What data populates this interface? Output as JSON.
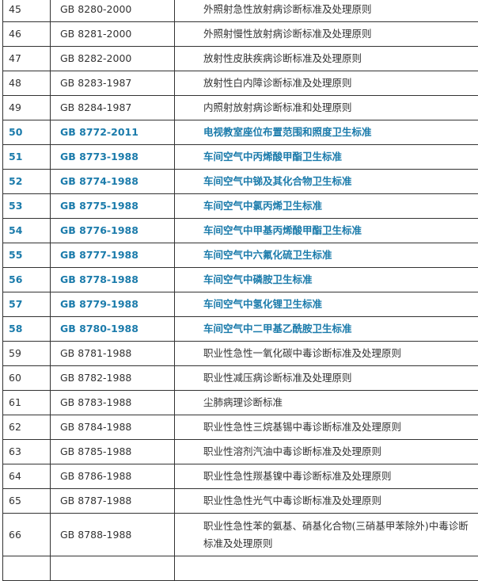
{
  "colors": {
    "highlight": "#1b7bab",
    "text": "#333333",
    "border": "#333333"
  },
  "rows": [
    {
      "no": "45",
      "code": "GB 8280-2000",
      "title": "外照射急性放射病诊断标准及处理原则",
      "highlight": false
    },
    {
      "no": "46",
      "code": "GB 8281-2000",
      "title": "外照射慢性放射病诊断标准及处理原则",
      "highlight": false
    },
    {
      "no": "47",
      "code": "GB 8282-2000",
      "title": "放射性皮肤疾病诊断标准及处理原则",
      "highlight": false
    },
    {
      "no": "48",
      "code": "GB 8283-1987",
      "title": "放射性白内障诊断标准及处理原则",
      "highlight": false
    },
    {
      "no": "49",
      "code": "GB 8284-1987",
      "title": "内照射放射病诊断标准和处理原则",
      "highlight": false
    },
    {
      "no": "50",
      "code": "GB 8772-2011",
      "title": "电视教室座位布置范围和照度卫生标准",
      "highlight": true
    },
    {
      "no": "51",
      "code": "GB 8773-1988",
      "title": "车间空气中丙烯酸甲酯卫生标准",
      "highlight": true
    },
    {
      "no": "52",
      "code": "GB 8774-1988",
      "title": "车间空气中锑及其化合物卫生标准",
      "highlight": true
    },
    {
      "no": "53",
      "code": "GB 8775-1988",
      "title": "车间空气中氯丙烯卫生标准",
      "highlight": true
    },
    {
      "no": "54",
      "code": "GB 8776-1988",
      "title": "车间空气中甲基丙烯酸甲酯卫生标准",
      "highlight": true
    },
    {
      "no": "55",
      "code": "GB 8777-1988",
      "title": "车间空气中六氟化硫卫生标准",
      "highlight": true
    },
    {
      "no": "56",
      "code": "GB 8778-1988",
      "title": "车间空气中磷胺卫生标准",
      "highlight": true
    },
    {
      "no": "57",
      "code": "GB 8779-1988",
      "title": "车间空气中氢化锂卫生标准",
      "highlight": true
    },
    {
      "no": "58",
      "code": "GB 8780-1988",
      "title": "车间空气中二甲基乙酰胺卫生标准",
      "highlight": true
    },
    {
      "no": "59",
      "code": "GB 8781-1988",
      "title": "职业性急性一氧化碳中毒诊断标准及处理原则",
      "highlight": false
    },
    {
      "no": "60",
      "code": "GB 8782-1988",
      "title": "职业性减压病诊断标准及处理原则",
      "highlight": false
    },
    {
      "no": "61",
      "code": "GB 8783-1988",
      "title": "尘肺病理诊断标准",
      "highlight": false
    },
    {
      "no": "62",
      "code": "GB 8784-1988",
      "title": "职业性急性三烷基锡中毒诊断标准及处理原则",
      "highlight": false
    },
    {
      "no": "63",
      "code": "GB 8785-1988",
      "title": "职业性溶剂汽油中毒诊断标准及处理原则",
      "highlight": false
    },
    {
      "no": "64",
      "code": "GB 8786-1988",
      "title": "职业性急性羰基镍中毒诊断标准及处理原则",
      "highlight": false
    },
    {
      "no": "65",
      "code": "GB 8787-1988",
      "title": "职业性急性光气中毒诊断标准及处理原则",
      "highlight": false
    },
    {
      "no": "66",
      "code": "GB 8788-1988",
      "title": "职业性急性苯的氨基、硝基化合物(三硝基甲苯除外)中毒诊断标准及处理原则",
      "highlight": false
    }
  ]
}
